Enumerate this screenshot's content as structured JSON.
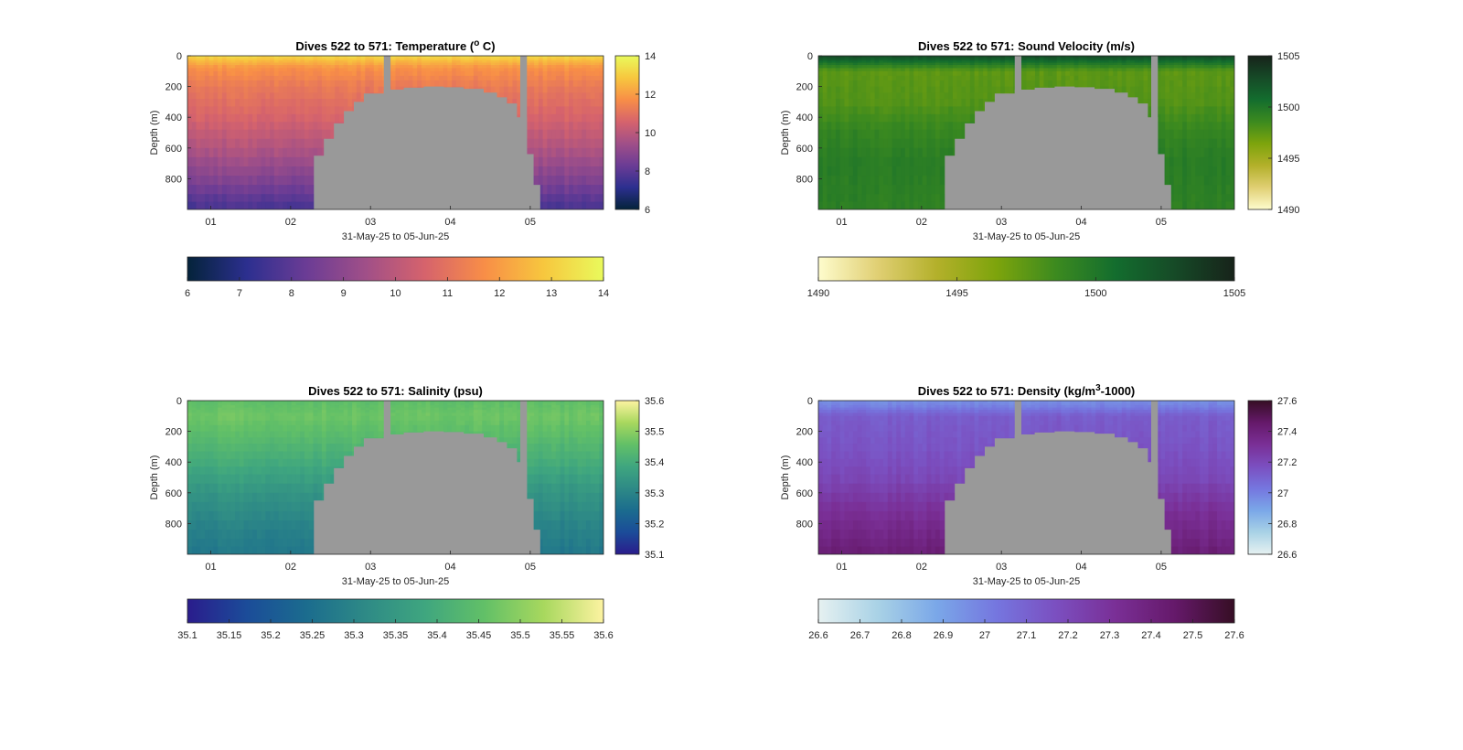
{
  "figure": {
    "background": "#ffffff",
    "land_color": "#999999",
    "axis_color": "#262626"
  },
  "chart_data": [
    {
      "type": "heatmap",
      "title": "Dives 522 to 571: Temperature (",
      "title_sup": "o",
      "title_end": " C)",
      "xlabel": "31-May-25 to 05-Jun-25",
      "ylabel": "Depth (m)",
      "x_ticks": [
        "01",
        "02",
        "03",
        "04",
        "05"
      ],
      "y_ticks": [
        "0",
        "200",
        "400",
        "600",
        "800"
      ],
      "x_range": [
        "2025-05-31T17:00",
        "2025-06-05T22:00"
      ],
      "ylim": [
        0,
        1000
      ],
      "y_reversed": true,
      "colorbar_right_ticks": [
        "6",
        "8",
        "10",
        "12",
        "14"
      ],
      "colorbar_bottom_ticks": [
        "6",
        "7",
        "8",
        "9",
        "10",
        "11",
        "12",
        "13",
        "14"
      ],
      "clim": [
        6,
        14
      ],
      "colormap": "thermal",
      "colormap_stops": [
        "#04233a",
        "#2c2f8f",
        "#6b3c95",
        "#a04f88",
        "#d6636c",
        "#f88e47",
        "#f7c73e",
        "#e9fa5c"
      ],
      "profile_layers": [
        {
          "depth": 0,
          "value": 13.3
        },
        {
          "depth": 40,
          "value": 12.5
        },
        {
          "depth": 80,
          "value": 11.8
        },
        {
          "depth": 200,
          "value": 11.2
        },
        {
          "depth": 400,
          "value": 10.6
        },
        {
          "depth": 600,
          "value": 9.8
        },
        {
          "depth": 800,
          "value": 8.8
        },
        {
          "depth": 1000,
          "value": 7.6
        }
      ]
    },
    {
      "type": "heatmap",
      "title": "Dives 522 to 571: Sound Velocity (m/s)",
      "title_sup": "",
      "title_end": "",
      "xlabel": "31-May-25 to 05-Jun-25",
      "ylabel": "Depth (m)",
      "x_ticks": [
        "01",
        "02",
        "03",
        "04",
        "05"
      ],
      "y_ticks": [
        "0",
        "200",
        "400",
        "600",
        "800"
      ],
      "x_range": [
        "2025-05-31T17:00",
        "2025-06-05T22:00"
      ],
      "ylim": [
        0,
        1000
      ],
      "y_reversed": true,
      "colorbar_right_ticks": [
        "1490",
        "1495",
        "1500",
        "1505"
      ],
      "colorbar_bottom_ticks": [
        "1490",
        "1495",
        "1500",
        "1505"
      ],
      "clim": [
        1490,
        1505
      ],
      "colormap": "speed",
      "colormap_stops": [
        "#fefccd",
        "#e0cf73",
        "#b3b02a",
        "#7da40c",
        "#3c8a1f",
        "#136d2e",
        "#164a27",
        "#17231a"
      ],
      "profile_layers": [
        {
          "depth": 0,
          "value": 1503.0
        },
        {
          "depth": 40,
          "value": 1500.5
        },
        {
          "depth": 100,
          "value": 1497.5
        },
        {
          "depth": 300,
          "value": 1497.8
        },
        {
          "depth": 500,
          "value": 1499.0
        },
        {
          "depth": 700,
          "value": 1499.6
        },
        {
          "depth": 1000,
          "value": 1499.3
        }
      ]
    },
    {
      "type": "heatmap",
      "title": "Dives 522 to 571: Salinity (psu)",
      "title_sup": "",
      "title_end": "",
      "xlabel": "31-May-25 to 05-Jun-25",
      "ylabel": "Depth (m)",
      "x_ticks": [
        "01",
        "02",
        "03",
        "04",
        "05"
      ],
      "y_ticks": [
        "0",
        "200",
        "400",
        "600",
        "800"
      ],
      "x_range": [
        "2025-05-31T17:00",
        "2025-06-05T22:00"
      ],
      "ylim": [
        0,
        1000
      ],
      "y_reversed": true,
      "colorbar_right_ticks": [
        "35.1",
        "35.2",
        "35.3",
        "35.4",
        "35.5",
        "35.6"
      ],
      "colorbar_bottom_ticks": [
        "35.1",
        "35.15",
        "35.2",
        "35.25",
        "35.3",
        "35.35",
        "35.4",
        "35.45",
        "35.5",
        "35.55",
        "35.6"
      ],
      "clim": [
        35.1,
        35.6
      ],
      "colormap": "haline",
      "colormap_stops": [
        "#2a1c8c",
        "#1b4c99",
        "#1b6c8e",
        "#2e8a86",
        "#3fa67f",
        "#62c067",
        "#a8d85e",
        "#fdf3a1"
      ],
      "profile_layers": [
        {
          "depth": 0,
          "value": 35.45
        },
        {
          "depth": 100,
          "value": 35.47
        },
        {
          "depth": 200,
          "value": 35.45
        },
        {
          "depth": 400,
          "value": 35.4
        },
        {
          "depth": 600,
          "value": 35.34
        },
        {
          "depth": 800,
          "value": 35.3
        },
        {
          "depth": 1000,
          "value": 35.27
        }
      ]
    },
    {
      "type": "heatmap",
      "title": "Dives 522 to 571: Density (kg/m",
      "title_sup": "3",
      "title_end": "-1000)",
      "xlabel": "31-May-25 to 05-Jun-25",
      "ylabel": "Depth (m)",
      "x_ticks": [
        "01",
        "02",
        "03",
        "04",
        "05"
      ],
      "y_ticks": [
        "0",
        "200",
        "400",
        "600",
        "800"
      ],
      "x_range": [
        "2025-05-31T17:00",
        "2025-06-05T22:00"
      ],
      "ylim": [
        0,
        1000
      ],
      "y_reversed": true,
      "colorbar_right_ticks": [
        "26.6",
        "26.8",
        "27",
        "27.2",
        "27.4",
        "27.6"
      ],
      "colorbar_bottom_ticks": [
        "26.6",
        "26.7",
        "26.8",
        "26.9",
        "27",
        "27.1",
        "27.2",
        "27.3",
        "27.4",
        "27.5",
        "27.6"
      ],
      "clim": [
        26.6,
        27.6
      ],
      "colormap": "dense",
      "colormap_stops": [
        "#e6f1f1",
        "#a9d2e6",
        "#7aa7e8",
        "#7576df",
        "#7b4fc0",
        "#7a2f96",
        "#65196a",
        "#360e24"
      ],
      "profile_layers": [
        {
          "depth": 0,
          "value": 26.95
        },
        {
          "depth": 40,
          "value": 27.0
        },
        {
          "depth": 100,
          "value": 27.12
        },
        {
          "depth": 300,
          "value": 27.15
        },
        {
          "depth": 500,
          "value": 27.2
        },
        {
          "depth": 700,
          "value": 27.3
        },
        {
          "depth": 1000,
          "value": 27.42
        }
      ]
    }
  ],
  "gaps": [
    {
      "from": "2025-06-02T20:00",
      "to": "2025-06-02T20:00"
    }
  ],
  "bathymetry": [
    {
      "time": "2025-06-02T07:00",
      "depth": 650
    },
    {
      "time": "2025-06-02T10:00",
      "depth": 540
    },
    {
      "time": "2025-06-02T13:00",
      "depth": 440
    },
    {
      "time": "2025-06-02T16:00",
      "depth": 360
    },
    {
      "time": "2025-06-02T19:00",
      "depth": 300
    },
    {
      "time": "2025-06-02T22:00",
      "depth": 245
    },
    {
      "time": "2025-06-03T04:00",
      "depth": 220
    },
    {
      "time": "2025-06-03T10:00",
      "depth": 208
    },
    {
      "time": "2025-06-03T16:00",
      "depth": 200
    },
    {
      "time": "2025-06-03T22:00",
      "depth": 205
    },
    {
      "time": "2025-06-04T04:00",
      "depth": 215
    },
    {
      "time": "2025-06-04T10:00",
      "depth": 240
    },
    {
      "time": "2025-06-04T14:00",
      "depth": 270
    },
    {
      "time": "2025-06-04T17:00",
      "depth": 310
    },
    {
      "time": "2025-06-04T20:00",
      "depth": 400
    },
    {
      "time": "2025-06-04T23:00",
      "depth": 640
    },
    {
      "time": "2025-06-05T01:00",
      "depth": 840
    },
    {
      "time": "2025-06-05T03:00",
      "depth": 1000
    }
  ],
  "data_gaps": [
    {
      "start": "2025-06-03T04:00",
      "end": "2025-06-03T06:00"
    },
    {
      "start": "2025-06-04T21:00",
      "end": "2025-06-04T23:00"
    }
  ]
}
